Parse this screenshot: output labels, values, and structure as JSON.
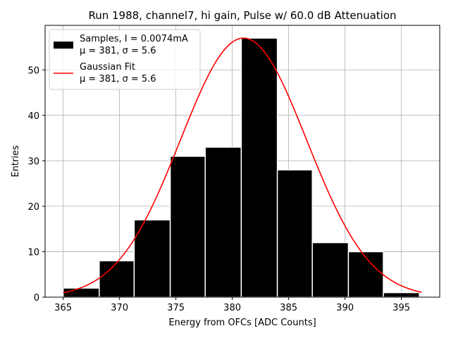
{
  "chart_data": {
    "type": "bar",
    "title": "Run 1988, channel7, hi gain, Pulse w/ 60.0 dB Attenuation",
    "xlabel": "Energy from OFCs [ADC Counts]",
    "ylabel": "Entries",
    "xlim": [
      363.4,
      398.4
    ],
    "ylim": [
      0,
      59.8
    ],
    "xticks": [
      365,
      370,
      375,
      380,
      385,
      390,
      395
    ],
    "yticks": [
      0,
      10,
      20,
      30,
      40,
      50
    ],
    "grid": true,
    "legend_position": "top-left",
    "bin_edges": [
      365.0,
      368.2,
      371.3,
      374.5,
      377.6,
      380.8,
      384.0,
      387.1,
      390.3,
      393.4,
      396.6
    ],
    "counts": [
      2,
      8,
      17,
      31,
      33,
      57,
      28,
      12,
      10,
      1
    ],
    "bar_color": "#000000",
    "fit": {
      "type": "gaussian",
      "mu": 381.0,
      "sigma": 5.6,
      "amplitude": 57.0,
      "x_range": [
        365.0,
        396.8
      ],
      "color": "#ff0000"
    },
    "legend": [
      {
        "kind": "patch",
        "line1": "Samples, I = 0.0074mA",
        "line2": "μ = 381, σ = 5.6",
        "color": "#000000"
      },
      {
        "kind": "line",
        "line1": "Gaussian Fit",
        "line2": "μ = 381, σ = 5.6",
        "color": "#ff0000"
      }
    ]
  }
}
